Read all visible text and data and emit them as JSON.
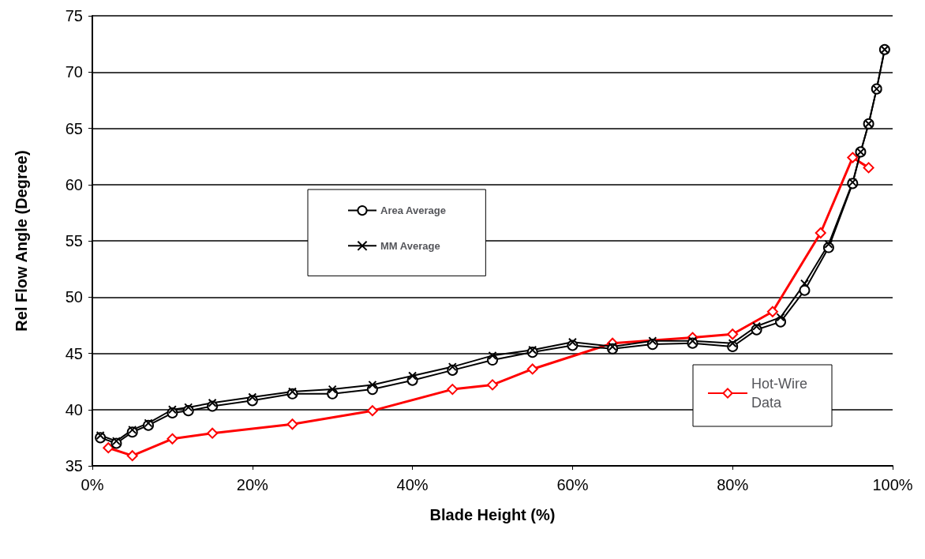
{
  "chart_data": {
    "type": "line",
    "xlabel": "Blade Height (%)",
    "ylabel": "Rel Flow Angle (Degree)",
    "xlim": [
      0,
      100
    ],
    "xticks": [
      {
        "value": 0,
        "label": "0%"
      },
      {
        "value": 20,
        "label": "20%"
      },
      {
        "value": 40,
        "label": "40%"
      },
      {
        "value": 60,
        "label": "60%"
      },
      {
        "value": 80,
        "label": "80%"
      },
      {
        "value": 100,
        "label": "100%"
      }
    ],
    "ylim": [
      35,
      75
    ],
    "yticks": [
      35,
      40,
      45,
      50,
      55,
      60,
      65,
      70,
      75
    ],
    "grid": "y",
    "legend": "center",
    "series": [
      {
        "name": "Area Average",
        "color": "#000000",
        "marker": "circle",
        "x": [
          1,
          3,
          5,
          7,
          10,
          12,
          15,
          20,
          25,
          30,
          35,
          40,
          45,
          50,
          55,
          60,
          65,
          70,
          75,
          80,
          83,
          86,
          89,
          92,
          95,
          96,
          97,
          98,
          99
        ],
        "values": [
          37.5,
          37.0,
          38.0,
          38.6,
          39.7,
          39.9,
          40.3,
          40.8,
          41.4,
          41.4,
          41.8,
          42.6,
          43.5,
          44.4,
          45.1,
          45.7,
          45.4,
          45.8,
          45.9,
          45.6,
          47.1,
          47.8,
          50.6,
          54.4,
          60.1,
          62.9,
          65.4,
          68.5,
          72.0
        ]
      },
      {
        "name": "MM Average",
        "color": "#000000",
        "marker": "cross",
        "x": [
          1,
          3,
          5,
          7,
          10,
          12,
          15,
          20,
          25,
          30,
          35,
          40,
          45,
          50,
          55,
          60,
          65,
          70,
          75,
          80,
          83,
          86,
          89,
          92,
          95,
          96,
          97,
          98,
          99
        ],
        "values": [
          37.7,
          37.2,
          38.2,
          38.8,
          40.0,
          40.2,
          40.6,
          41.1,
          41.6,
          41.8,
          42.2,
          43.0,
          43.8,
          44.8,
          45.3,
          46.0,
          45.6,
          46.1,
          46.1,
          45.9,
          47.4,
          48.2,
          51.2,
          54.7,
          60.2,
          62.9,
          65.4,
          68.5,
          72.0
        ]
      },
      {
        "name": "Hot-Wire Data",
        "color": "#ff0000",
        "marker": "diamond",
        "x": [
          2,
          5,
          10,
          15,
          25,
          35,
          45,
          50,
          55,
          65,
          75,
          80,
          85,
          91,
          95,
          97
        ],
        "values": [
          36.6,
          35.9,
          37.4,
          37.9,
          38.7,
          39.9,
          41.8,
          42.2,
          43.6,
          45.9,
          46.4,
          46.7,
          48.7,
          55.7,
          62.4,
          61.5
        ]
      }
    ]
  }
}
